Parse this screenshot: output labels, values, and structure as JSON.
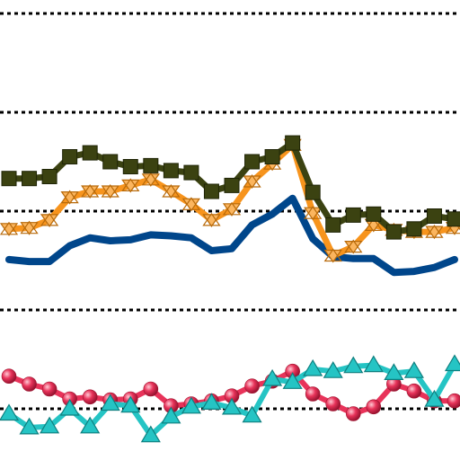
{
  "chart_data": {
    "type": "line",
    "title": "",
    "xlabel": "",
    "ylabel": "",
    "grid": "horizontal-dotted",
    "legend": "none",
    "x": [
      0,
      1,
      2,
      3,
      4,
      5,
      6,
      7,
      8,
      9,
      10,
      11,
      12,
      13,
      14,
      15,
      16,
      17,
      18,
      19,
      20,
      21,
      22
    ],
    "ylim": [
      0,
      5
    ],
    "gridlines": [
      1,
      2,
      3,
      4
    ],
    "series": [
      {
        "key": "dark-olive",
        "color": "#3b4211",
        "marker": "square",
        "values": [
          3.33,
          3.33,
          3.35,
          3.55,
          3.59,
          3.5,
          3.45,
          3.46,
          3.41,
          3.39,
          3.2,
          3.26,
          3.5,
          3.55,
          3.69,
          3.19,
          2.86,
          2.96,
          2.97,
          2.79,
          2.82,
          2.95,
          2.92
        ]
      },
      {
        "key": "orange",
        "color": "#f7941d",
        "marker": "x-triangle",
        "values": [
          2.82,
          2.83,
          2.91,
          3.14,
          3.2,
          3.2,
          3.26,
          3.32,
          3.2,
          3.07,
          2.91,
          3.02,
          3.3,
          3.48,
          3.67,
          2.98,
          2.55,
          2.64,
          2.86,
          2.81,
          2.79,
          2.79,
          2.83
        ]
      },
      {
        "key": "navy",
        "color": "#00468b",
        "marker": "none",
        "values": [
          2.51,
          2.49,
          2.49,
          2.65,
          2.73,
          2.7,
          2.71,
          2.76,
          2.75,
          2.73,
          2.6,
          2.62,
          2.86,
          2.97,
          3.13,
          2.72,
          2.54,
          2.52,
          2.52,
          2.38,
          2.39,
          2.43,
          2.51
        ]
      },
      {
        "key": "red",
        "color": "#e8335a",
        "marker": "sphere",
        "values": [
          1.33,
          1.25,
          1.2,
          1.1,
          1.12,
          1.09,
          1.1,
          1.2,
          1.03,
          1.05,
          1.08,
          1.13,
          1.23,
          1.28,
          1.38,
          1.15,
          1.05,
          0.95,
          1.02,
          1.25,
          1.18,
          1.08,
          1.08
        ]
      },
      {
        "key": "cyan",
        "color": "#25c4c4",
        "marker": "triangle",
        "values": [
          0.95,
          0.81,
          0.82,
          1.0,
          0.82,
          1.05,
          1.03,
          0.73,
          0.92,
          1.02,
          1.06,
          1.01,
          0.93,
          1.3,
          1.27,
          1.4,
          1.38,
          1.43,
          1.44,
          1.36,
          1.38,
          1.09,
          1.45
        ]
      }
    ]
  }
}
